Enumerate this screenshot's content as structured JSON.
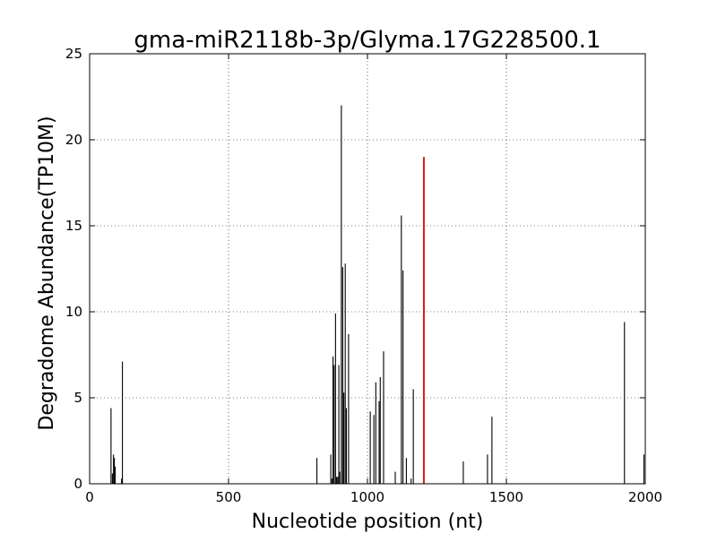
{
  "chart_data": {
    "type": "bar",
    "title": "gma-miR2118b-3p/Glyma.17G228500.1",
    "xlabel": "Nucleotide position (nt)",
    "ylabel": "Degradome Abundance(TP10M)",
    "xlim": [
      0,
      2000
    ],
    "ylim": [
      0,
      25
    ],
    "xticks": [
      0,
      500,
      1000,
      1500,
      2000
    ],
    "xtick_labels": [
      "0",
      "500",
      "1000",
      "1500",
      "2000"
    ],
    "yticks": [
      0,
      5,
      10,
      15,
      20,
      25
    ],
    "ytick_labels": [
      "0",
      "5",
      "10",
      "15",
      "20",
      "25"
    ],
    "grid": true,
    "series": [
      {
        "color": "#000000",
        "points": [
          {
            "x": 77,
            "y": 4.4
          },
          {
            "x": 82,
            "y": 0.6
          },
          {
            "x": 86,
            "y": 1.7
          },
          {
            "x": 89,
            "y": 1.5
          },
          {
            "x": 92,
            "y": 1.0
          },
          {
            "x": 115,
            "y": 0.3
          },
          {
            "x": 118,
            "y": 7.1
          },
          {
            "x": 818,
            "y": 1.5
          },
          {
            "x": 868,
            "y": 1.7
          },
          {
            "x": 872,
            "y": 0.3
          },
          {
            "x": 876,
            "y": 7.4
          },
          {
            "x": 880,
            "y": 6.9
          },
          {
            "x": 885,
            "y": 9.9
          },
          {
            "x": 889,
            "y": 0.4
          },
          {
            "x": 893,
            "y": 0.4
          },
          {
            "x": 897,
            "y": 6.9
          },
          {
            "x": 900,
            "y": 0.7
          },
          {
            "x": 906,
            "y": 22.0
          },
          {
            "x": 911,
            "y": 12.6
          },
          {
            "x": 915,
            "y": 5.3
          },
          {
            "x": 920,
            "y": 12.8
          },
          {
            "x": 924,
            "y": 4.4
          },
          {
            "x": 932,
            "y": 8.7
          },
          {
            "x": 1010,
            "y": 4.2
          },
          {
            "x": 1023,
            "y": 4.0
          },
          {
            "x": 1030,
            "y": 5.9
          },
          {
            "x": 1042,
            "y": 4.8
          },
          {
            "x": 1046,
            "y": 6.2
          },
          {
            "x": 1058,
            "y": 7.7
          },
          {
            "x": 1100,
            "y": 0.7
          },
          {
            "x": 1122,
            "y": 15.6
          },
          {
            "x": 1128,
            "y": 12.4
          },
          {
            "x": 1140,
            "y": 1.5
          },
          {
            "x": 1157,
            "y": 0.3
          },
          {
            "x": 1165,
            "y": 5.5
          },
          {
            "x": 1345,
            "y": 1.3
          },
          {
            "x": 1432,
            "y": 1.7
          },
          {
            "x": 1448,
            "y": 3.9
          },
          {
            "x": 1925,
            "y": 9.4
          },
          {
            "x": 1995,
            "y": 1.7
          }
        ]
      },
      {
        "color": "#d7191c",
        "points": [
          {
            "x": 1203,
            "y": 19.0
          }
        ]
      }
    ]
  }
}
